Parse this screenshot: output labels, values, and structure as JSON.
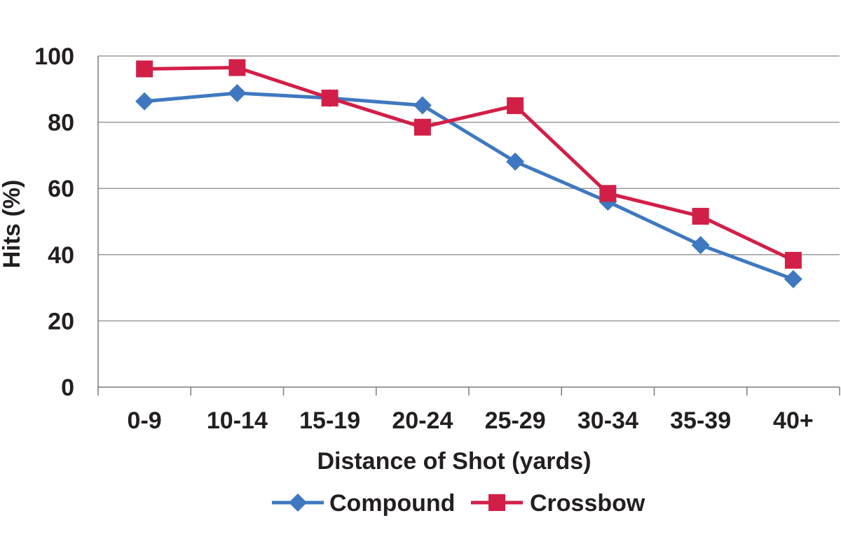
{
  "chart_data": {
    "type": "line",
    "title": "",
    "xlabel": "Distance of Shot (yards)",
    "ylabel": "Hits (%)",
    "categories": [
      "0-9",
      "10-14",
      "15-19",
      "20-24",
      "25-29",
      "30-34",
      "35-39",
      "40+"
    ],
    "ylim": [
      0,
      100
    ],
    "yticks": [
      0,
      20,
      40,
      60,
      80,
      100
    ],
    "grid": true,
    "legend_position": "bottom",
    "series": [
      {
        "name": "Compound",
        "marker": "diamond",
        "color": "#3f78c0",
        "values": [
          86.3,
          88.8,
          87.3,
          85.1,
          68.1,
          56.0,
          42.9,
          32.6
        ]
      },
      {
        "name": "Crossbow",
        "marker": "square",
        "color": "#d21f47",
        "values": [
          96.1,
          96.5,
          87.3,
          78.5,
          85.0,
          58.5,
          51.6,
          38.3
        ]
      }
    ]
  }
}
